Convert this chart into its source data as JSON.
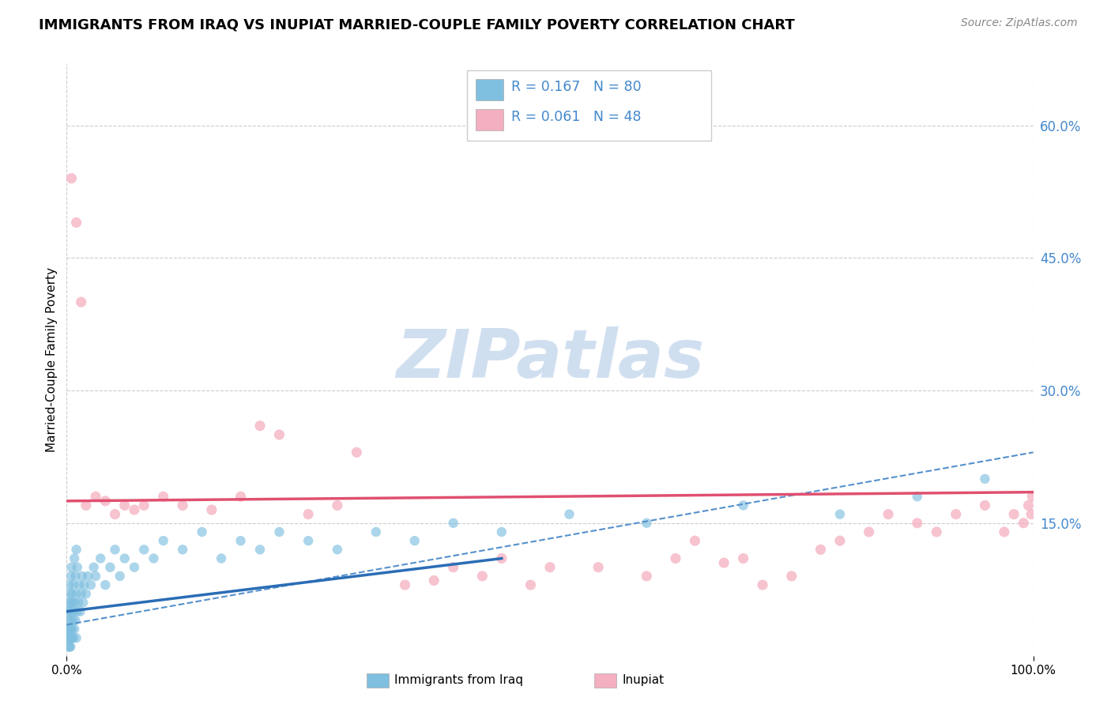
{
  "title": "IMMIGRANTS FROM IRAQ VS INUPIAT MARRIED-COUPLE FAMILY POVERTY CORRELATION CHART",
  "source": "Source: ZipAtlas.com",
  "xlabel_bottom": "Immigrants from Iraq",
  "ylabel": "Married-Couple Family Poverty",
  "xlim": [
    0,
    100
  ],
  "ylim": [
    0,
    67
  ],
  "yticks": [
    15,
    30,
    45,
    60
  ],
  "xticks": [
    0,
    100
  ],
  "blue_scatter_color": "#7fbfdf",
  "pink_scatter_color": "#f4afc0",
  "trend_blue_solid_color": "#2a6db5",
  "trend_pink_solid_color": "#e05070",
  "trend_blue_dash_color": "#5590cc",
  "background_color": "#ffffff",
  "grid_color": "#cccccc",
  "right_axis_color": "#4488cc",
  "watermark_color": "#d0dff0",
  "blue_x": [
    0.1,
    0.15,
    0.15,
    0.2,
    0.2,
    0.2,
    0.25,
    0.25,
    0.3,
    0.3,
    0.3,
    0.3,
    0.35,
    0.35,
    0.4,
    0.4,
    0.4,
    0.45,
    0.45,
    0.5,
    0.5,
    0.5,
    0.55,
    0.55,
    0.6,
    0.6,
    0.65,
    0.7,
    0.7,
    0.75,
    0.8,
    0.8,
    0.85,
    0.9,
    0.9,
    1.0,
    1.0,
    1.0,
    1.1,
    1.1,
    1.2,
    1.3,
    1.4,
    1.5,
    1.6,
    1.7,
    1.8,
    2.0,
    2.2,
    2.5,
    2.8,
    3.0,
    3.5,
    4.0,
    4.5,
    5.0,
    5.5,
    6.0,
    7.0,
    8.0,
    9.0,
    10.0,
    12.0,
    14.0,
    16.0,
    18.0,
    20.0,
    22.0,
    25.0,
    28.0,
    32.0,
    36.0,
    40.0,
    45.0,
    52.0,
    60.0,
    70.0,
    80.0,
    88.0,
    95.0
  ],
  "blue_y": [
    3.0,
    2.0,
    5.0,
    1.0,
    3.0,
    6.0,
    2.0,
    4.0,
    1.0,
    3.0,
    5.0,
    8.0,
    2.0,
    7.0,
    1.0,
    4.0,
    6.0,
    3.0,
    9.0,
    2.0,
    5.0,
    10.0,
    3.0,
    7.0,
    2.0,
    6.0,
    4.0,
    2.0,
    8.0,
    5.0,
    3.0,
    11.0,
    6.0,
    4.0,
    9.0,
    2.0,
    7.0,
    12.0,
    5.0,
    10.0,
    6.0,
    8.0,
    5.0,
    7.0,
    9.0,
    6.0,
    8.0,
    7.0,
    9.0,
    8.0,
    10.0,
    9.0,
    11.0,
    8.0,
    10.0,
    12.0,
    9.0,
    11.0,
    10.0,
    12.0,
    11.0,
    13.0,
    12.0,
    14.0,
    11.0,
    13.0,
    12.0,
    14.0,
    13.0,
    12.0,
    14.0,
    13.0,
    15.0,
    14.0,
    16.0,
    15.0,
    17.0,
    16.0,
    18.0,
    20.0
  ],
  "pink_x": [
    0.5,
    1.0,
    1.5,
    2.0,
    3.0,
    4.0,
    5.0,
    6.0,
    7.0,
    8.0,
    10.0,
    12.0,
    15.0,
    18.0,
    20.0,
    22.0,
    25.0,
    28.0,
    30.0,
    35.0,
    38.0,
    40.0,
    43.0,
    45.0,
    48.0,
    50.0,
    55.0,
    60.0,
    63.0,
    65.0,
    68.0,
    70.0,
    72.0,
    75.0,
    78.0,
    80.0,
    83.0,
    85.0,
    88.0,
    90.0,
    92.0,
    95.0,
    97.0,
    98.0,
    99.0,
    99.5,
    99.8,
    99.9
  ],
  "pink_y": [
    54.0,
    49.0,
    40.0,
    17.0,
    18.0,
    17.5,
    16.0,
    17.0,
    16.5,
    17.0,
    18.0,
    17.0,
    16.5,
    18.0,
    26.0,
    25.0,
    16.0,
    17.0,
    23.0,
    8.0,
    8.5,
    10.0,
    9.0,
    11.0,
    8.0,
    10.0,
    10.0,
    9.0,
    11.0,
    13.0,
    10.5,
    11.0,
    8.0,
    9.0,
    12.0,
    13.0,
    14.0,
    16.0,
    15.0,
    14.0,
    16.0,
    17.0,
    14.0,
    16.0,
    15.0,
    17.0,
    16.0,
    18.0
  ],
  "blue_trend_x0": 0,
  "blue_trend_y0": 5.0,
  "blue_trend_x1": 45,
  "blue_trend_y1": 11.0,
  "blue_dash_x0": 0,
  "blue_dash_y0": 3.5,
  "blue_dash_x1": 100,
  "blue_dash_y1": 23.0,
  "pink_trend_x0": 0,
  "pink_trend_y0": 17.5,
  "pink_trend_x1": 100,
  "pink_trend_y1": 18.5
}
